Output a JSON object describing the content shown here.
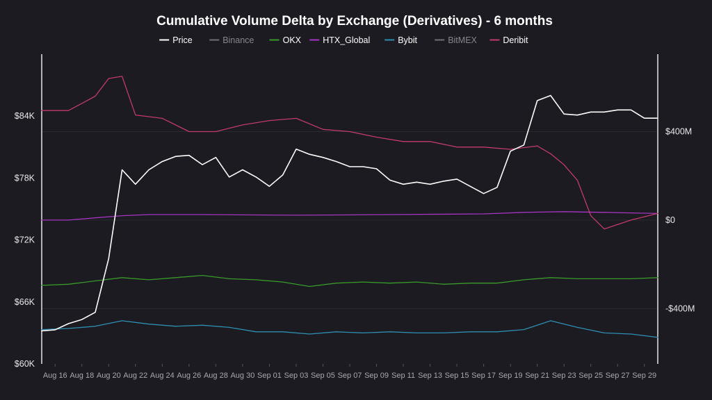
{
  "chart_data": {
    "type": "line",
    "title": "Cumulative Volume Delta by Exchange (Derivatives) - 6 months",
    "legend_position": "top-center",
    "grid": true,
    "x_axis": {
      "type": "date",
      "range": [
        "2023-08-15",
        "2023-09-30"
      ],
      "tick_labels": [
        "Aug 16",
        "Aug 18",
        "Aug 20",
        "Aug 22",
        "Aug 24",
        "Aug 26",
        "Aug 28",
        "Aug 30",
        "Sep 01",
        "Sep 03",
        "Sep 05",
        "Sep 07",
        "Sep 09",
        "Sep 11",
        "Sep 13",
        "Sep 15",
        "Sep 17",
        "Sep 19",
        "Sep 21",
        "Sep 23",
        "Sep 25",
        "Sep 27",
        "Sep 29"
      ]
    },
    "y_axis_left": {
      "label": "",
      "range": [
        60000,
        90000
      ],
      "tick_values": [
        60000,
        66000,
        72000,
        78000,
        84000
      ],
      "tick_labels": [
        "$60K",
        "$66K",
        "$72K",
        "$78K",
        "$84K"
      ]
    },
    "y_axis_right": {
      "label": "",
      "range": [
        -650,
        750
      ],
      "unit": "M USD",
      "tick_values": [
        -400,
        0,
        400
      ],
      "tick_labels": [
        "-$400M",
        "$0",
        "$400M"
      ]
    },
    "series": [
      {
        "name": "Price",
        "axis": "left",
        "color": "#ffffff",
        "x": [
          "2023-08-15",
          "2023-08-16",
          "2023-08-17",
          "2023-08-18",
          "2023-08-19",
          "2023-08-20",
          "2023-08-21",
          "2023-08-22",
          "2023-08-23",
          "2023-08-24",
          "2023-08-25",
          "2023-08-26",
          "2023-08-27",
          "2023-08-28",
          "2023-08-29",
          "2023-08-30",
          "2023-08-31",
          "2023-09-01",
          "2023-09-02",
          "2023-09-03",
          "2023-09-04",
          "2023-09-05",
          "2023-09-06",
          "2023-09-07",
          "2023-09-08",
          "2023-09-09",
          "2023-09-10",
          "2023-09-11",
          "2023-09-12",
          "2023-09-13",
          "2023-09-14",
          "2023-09-15",
          "2023-09-16",
          "2023-09-17",
          "2023-09-18",
          "2023-09-19",
          "2023-09-20",
          "2023-09-21",
          "2023-09-22",
          "2023-09-23",
          "2023-09-24",
          "2023-09-25",
          "2023-09-26",
          "2023-09-27",
          "2023-09-28",
          "2023-09-29",
          "2023-09-30"
        ],
        "y": [
          63200,
          63300,
          63900,
          64300,
          65000,
          70200,
          78800,
          77400,
          78800,
          79600,
          80100,
          80200,
          79300,
          80000,
          78100,
          78800,
          78100,
          77200,
          78300,
          80800,
          80300,
          80000,
          79600,
          79100,
          79100,
          78900,
          77800,
          77400,
          77600,
          77400,
          77700,
          77900,
          77200,
          76500,
          77100,
          80600,
          81200,
          85500,
          86000,
          84200,
          84100,
          84400,
          84400,
          84600,
          84600,
          83800,
          83800
        ]
      },
      {
        "name": "Binance",
        "axis": "right",
        "color": "#6f6f78",
        "x": [],
        "y": []
      },
      {
        "name": "OKX",
        "axis": "right",
        "color": "#3a9a2a",
        "x": [
          "2023-08-15",
          "2023-08-17",
          "2023-08-19",
          "2023-08-21",
          "2023-08-23",
          "2023-08-25",
          "2023-08-27",
          "2023-08-29",
          "2023-08-31",
          "2023-09-02",
          "2023-09-04",
          "2023-09-06",
          "2023-09-08",
          "2023-09-10",
          "2023-09-12",
          "2023-09-14",
          "2023-09-16",
          "2023-09-18",
          "2023-09-20",
          "2023-09-22",
          "2023-09-24",
          "2023-09-26",
          "2023-09-28",
          "2023-09-30"
        ],
        "y": [
          -295,
          -290,
          -275,
          -260,
          -270,
          -260,
          -250,
          -265,
          -270,
          -280,
          -300,
          -285,
          -280,
          -285,
          -280,
          -290,
          -285,
          -285,
          -270,
          -260,
          -265,
          -265,
          -265,
          -260
        ]
      },
      {
        "name": "HTX_Global",
        "axis": "right",
        "color": "#a535c2",
        "x": [
          "2023-08-15",
          "2023-08-17",
          "2023-08-19",
          "2023-08-21",
          "2023-08-23",
          "2023-08-27",
          "2023-09-03",
          "2023-09-10",
          "2023-09-17",
          "2023-09-20",
          "2023-09-23",
          "2023-09-26",
          "2023-09-30"
        ],
        "y": [
          0,
          0,
          10,
          20,
          25,
          25,
          22,
          25,
          28,
          35,
          38,
          35,
          30
        ]
      },
      {
        "name": "Bybit",
        "axis": "right",
        "color": "#2f8fb2",
        "x": [
          "2023-08-15",
          "2023-08-17",
          "2023-08-19",
          "2023-08-21",
          "2023-08-23",
          "2023-08-25",
          "2023-08-27",
          "2023-08-29",
          "2023-08-31",
          "2023-09-02",
          "2023-09-04",
          "2023-09-06",
          "2023-09-08",
          "2023-09-10",
          "2023-09-12",
          "2023-09-14",
          "2023-09-16",
          "2023-09-18",
          "2023-09-20",
          "2023-09-22",
          "2023-09-24",
          "2023-09-26",
          "2023-09-28",
          "2023-09-30"
        ],
        "y": [
          -495,
          -490,
          -480,
          -455,
          -470,
          -480,
          -475,
          -485,
          -505,
          -505,
          -515,
          -505,
          -510,
          -505,
          -510,
          -510,
          -505,
          -505,
          -495,
          -455,
          -485,
          -510,
          -515,
          -530
        ]
      },
      {
        "name": "BitMEX",
        "axis": "right",
        "color": "#6f6f78",
        "x": [],
        "y": []
      },
      {
        "name": "Deribit",
        "axis": "right",
        "color": "#c23a6e",
        "x": [
          "2023-08-15",
          "2023-08-17",
          "2023-08-19",
          "2023-08-20",
          "2023-08-21",
          "2023-08-22",
          "2023-08-24",
          "2023-08-26",
          "2023-08-28",
          "2023-08-30",
          "2023-09-01",
          "2023-09-03",
          "2023-09-05",
          "2023-09-07",
          "2023-09-09",
          "2023-09-11",
          "2023-09-13",
          "2023-09-15",
          "2023-09-17",
          "2023-09-19",
          "2023-09-21",
          "2023-09-22",
          "2023-09-23",
          "2023-09-24",
          "2023-09-25",
          "2023-09-26",
          "2023-09-28",
          "2023-09-30"
        ],
        "y": [
          495,
          495,
          560,
          640,
          650,
          475,
          460,
          400,
          400,
          430,
          450,
          460,
          410,
          400,
          375,
          355,
          355,
          330,
          330,
          320,
          335,
          300,
          250,
          180,
          20,
          -40,
          0,
          30
        ]
      }
    ]
  }
}
